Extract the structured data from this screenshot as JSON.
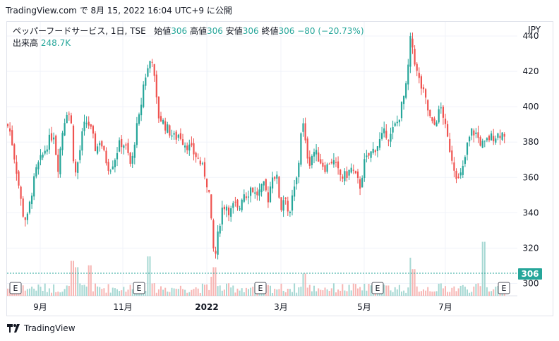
{
  "header": {
    "published_text": "TradingView.com で 8月 15, 2022 16:04 UTC+9 に公開"
  },
  "legend": {
    "symbol": "ペッパーフードサービス, 1日, TSE",
    "open_label": "始値",
    "open": "306",
    "high_label": "高値",
    "high": "306",
    "low_label": "安値",
    "low": "306",
    "close_label": "終値",
    "close": "306",
    "change": "−80 (−20.73%)",
    "volume_label": "出来高",
    "volume": "248.7K"
  },
  "price_axis": {
    "currency": "JPY",
    "last_price": "306"
  },
  "colors": {
    "up": "#26a69a",
    "down": "#ef5350",
    "up_volume": "#a6d8d3",
    "down_volume": "#f7b6b4",
    "grid": "#f0f3fa",
    "axis_text": "#131722"
  },
  "earnings_marker_label": "E",
  "footer": {
    "brand": "TradingView",
    "icon": "tradingview-logo-icon"
  },
  "chart_data": {
    "type": "candlestick",
    "title": "ペッパーフードサービス, 1日, TSE",
    "ylim": [
      293,
      448
    ],
    "y_ticks": [
      300,
      320,
      340,
      360,
      380,
      400,
      420,
      440
    ],
    "x_ticks": [
      "9月",
      "11月",
      "2022",
      "3月",
      "5月",
      "7月"
    ],
    "last_price": 306,
    "earnings_markers": [
      "2021-08",
      "2021-11",
      "2022-02",
      "2022-05",
      "2022-08"
    ],
    "price_path": [
      [
        0,
        390
      ],
      [
        5,
        385
      ],
      [
        15,
        360
      ],
      [
        22,
        340
      ],
      [
        28,
        335
      ],
      [
        35,
        352
      ],
      [
        42,
        365
      ],
      [
        50,
        372
      ],
      [
        58,
        380
      ],
      [
        66,
        385
      ],
      [
        72,
        365
      ],
      [
        78,
        385
      ],
      [
        84,
        398
      ],
      [
        90,
        395
      ],
      [
        96,
        360
      ],
      [
        102,
        372
      ],
      [
        108,
        388
      ],
      [
        114,
        392
      ],
      [
        120,
        385
      ],
      [
        126,
        375
      ],
      [
        132,
        382
      ],
      [
        138,
        372
      ],
      [
        145,
        365
      ],
      [
        152,
        370
      ],
      [
        158,
        378
      ],
      [
        164,
        380
      ],
      [
        170,
        375
      ],
      [
        176,
        365
      ],
      [
        182,
        385
      ],
      [
        188,
        395
      ],
      [
        194,
        415
      ],
      [
        200,
        422
      ],
      [
        205,
        430
      ],
      [
        210,
        410
      ],
      [
        214,
        395
      ],
      [
        220,
        392
      ],
      [
        226,
        388
      ],
      [
        232,
        385
      ],
      [
        238,
        382
      ],
      [
        244,
        385
      ],
      [
        250,
        380
      ],
      [
        256,
        378
      ],
      [
        262,
        375
      ],
      [
        268,
        372
      ],
      [
        274,
        368
      ],
      [
        280,
        362
      ],
      [
        286,
        352
      ],
      [
        290,
        330
      ],
      [
        294,
        312
      ],
      [
        298,
        325
      ],
      [
        304,
        342
      ],
      [
        310,
        345
      ],
      [
        316,
        340
      ],
      [
        322,
        345
      ],
      [
        328,
        340
      ],
      [
        334,
        352
      ],
      [
        340,
        350
      ],
      [
        346,
        355
      ],
      [
        352,
        350
      ],
      [
        358,
        352
      ],
      [
        364,
        355
      ],
      [
        370,
        348
      ],
      [
        376,
        362
      ],
      [
        382,
        360
      ],
      [
        388,
        342
      ],
      [
        394,
        352
      ],
      [
        400,
        335
      ],
      [
        404,
        348
      ],
      [
        408,
        355
      ],
      [
        412,
        362
      ],
      [
        418,
        395
      ],
      [
        422,
        380
      ],
      [
        428,
        368
      ],
      [
        434,
        375
      ],
      [
        440,
        372
      ],
      [
        446,
        368
      ],
      [
        452,
        365
      ],
      [
        458,
        370
      ],
      [
        464,
        368
      ],
      [
        470,
        362
      ],
      [
        476,
        360
      ],
      [
        482,
        362
      ],
      [
        488,
        365
      ],
      [
        494,
        360
      ],
      [
        500,
        355
      ],
      [
        506,
        368
      ],
      [
        512,
        372
      ],
      [
        518,
        375
      ],
      [
        524,
        378
      ],
      [
        530,
        382
      ],
      [
        536,
        386
      ],
      [
        542,
        382
      ],
      [
        548,
        388
      ],
      [
        554,
        392
      ],
      [
        560,
        402
      ],
      [
        566,
        412
      ],
      [
        572,
        440
      ],
      [
        576,
        430
      ],
      [
        580,
        420
      ],
      [
        586,
        412
      ],
      [
        592,
        405
      ],
      [
        598,
        395
      ],
      [
        604,
        388
      ],
      [
        610,
        395
      ],
      [
        616,
        400
      ],
      [
        622,
        385
      ],
      [
        628,
        375
      ],
      [
        634,
        365
      ],
      [
        640,
        358
      ],
      [
        646,
        365
      ],
      [
        652,
        378
      ],
      [
        658,
        386
      ],
      [
        664,
        385
      ],
      [
        670,
        380
      ],
      [
        676,
        378
      ],
      [
        682,
        382
      ],
      [
        688,
        383
      ],
      [
        694,
        384
      ],
      [
        700,
        385
      ],
      [
        706,
        385
      ]
    ],
    "volume_spikes": [
      {
        "x": 92,
        "v": 0.55
      },
      {
        "x": 100,
        "v": 0.45
      },
      {
        "x": 118,
        "v": 0.48
      },
      {
        "x": 200,
        "v": 0.62
      },
      {
        "x": 290,
        "v": 0.3
      },
      {
        "x": 294,
        "v": 0.45
      },
      {
        "x": 420,
        "v": 0.35
      },
      {
        "x": 572,
        "v": 0.6
      },
      {
        "x": 576,
        "v": 0.42
      },
      {
        "x": 676,
        "v": 0.85
      }
    ]
  }
}
